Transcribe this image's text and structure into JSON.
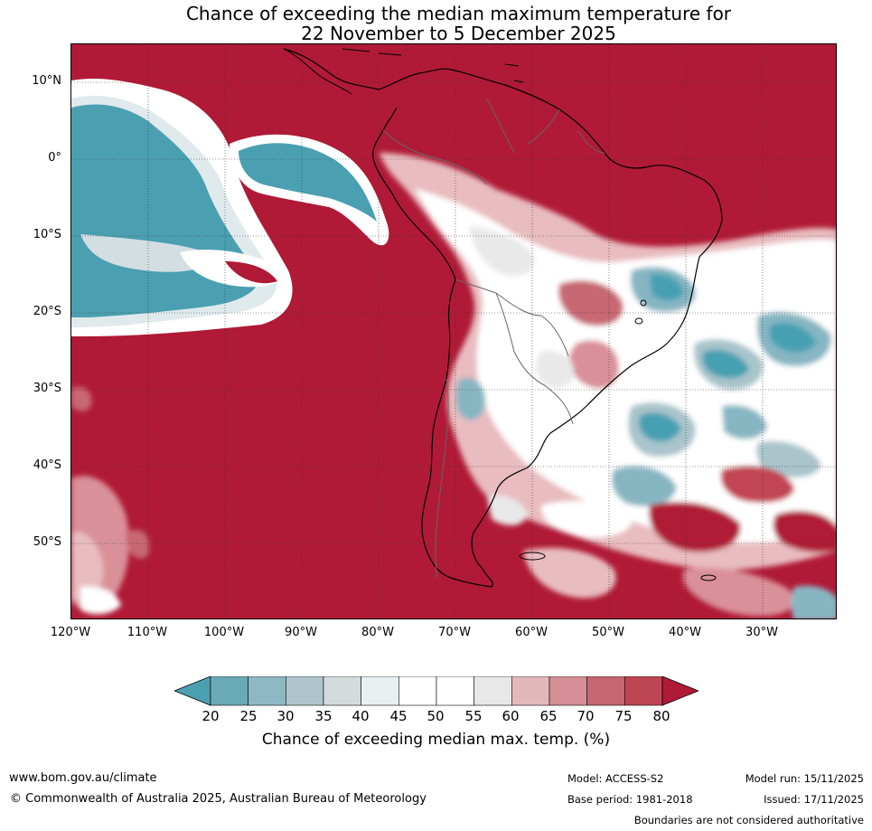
{
  "title": {
    "line1": "Chance of exceeding the median maximum temperature for",
    "line2": "22 November to 5 December 2025"
  },
  "map": {
    "lat_labels": [
      "10°N",
      "0°",
      "10°S",
      "20°S",
      "30°S",
      "40°S",
      "50°S"
    ],
    "lon_labels": [
      "120°W",
      "110°W",
      "100°W",
      "90°W",
      "80°W",
      "70°W",
      "60°W",
      "50°W",
      "40°W",
      "30°W"
    ],
    "colors": {
      "high": "#b01a36",
      "very_high": "#c24452",
      "warm": "#c86772",
      "warm_light": "#d99098",
      "pale_red": "#e8bcc0",
      "neutral": "#ffffff",
      "neutral_grey": "#e9e9e9",
      "cool_light": "#d0dadd",
      "cool": "#a9c4cb",
      "cool_med": "#87b6c3",
      "cool_dark": "#46a0b2"
    }
  },
  "colorbar": {
    "ticks": [
      "20",
      "25",
      "30",
      "35",
      "40",
      "45",
      "50",
      "55",
      "60",
      "65",
      "70",
      "75",
      "80"
    ],
    "label": "Chance of exceeding median max. temp. (%)",
    "colors": [
      "#6aa9b6",
      "#8fb8c5",
      "#aec6cb",
      "#d4dbdd",
      "#e9f0f2",
      "#ffffff",
      "#ffffff",
      "#e8e8e8",
      "#e3b8bc",
      "#d58e96",
      "#c7676f",
      "#be4654"
    ],
    "low_color": "#4aa0b1",
    "high_color": "#b01a36"
  },
  "footer": {
    "website": "www.bom.gov.au/climate",
    "copyright": "© Commonwealth of Australia 2025, Australian Bureau of Meteorology",
    "model": "Model: ACCESS-S2",
    "model_run": "Model run: 15/11/2025",
    "base_period": "Base period: 1981-2018",
    "issued": "Issued: 17/11/2025",
    "disclaimer": "Boundaries are not considered authoritative"
  }
}
